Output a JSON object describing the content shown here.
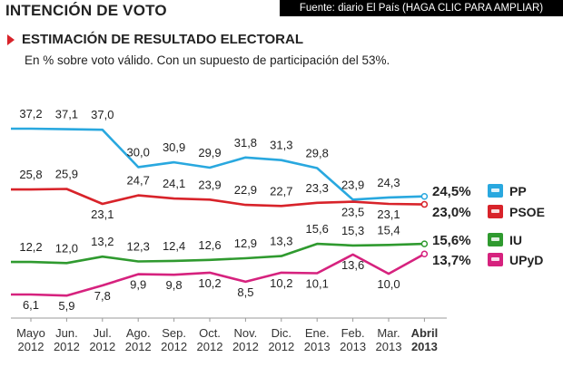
{
  "header": {
    "title": "INTENCIÓN DE VOTO",
    "source": "Fuente: diario El País  (HAGA CLIC PARA AMPLIAR)",
    "subtitle": "ESTIMACIÓN DE RESULTADO ELECTORAL",
    "note": "En % sobre voto válido. Con un supuesto de participación del 53%."
  },
  "chart_data": {
    "type": "line",
    "categories": [
      {
        "month": "Mayo",
        "year": "2012"
      },
      {
        "month": "Jun.",
        "year": "2012"
      },
      {
        "month": "Jul.",
        "year": "2012"
      },
      {
        "month": "Ago.",
        "year": "2012"
      },
      {
        "month": "Sep.",
        "year": "2012"
      },
      {
        "month": "Oct.",
        "year": "2012"
      },
      {
        "month": "Nov.",
        "year": "2012"
      },
      {
        "month": "Dic.",
        "year": "2012"
      },
      {
        "month": "Ene.",
        "year": "2013"
      },
      {
        "month": "Feb.",
        "year": "2013"
      },
      {
        "month": "Mar.",
        "year": "2013"
      },
      {
        "month": "Abril",
        "year": "2013"
      }
    ],
    "series": [
      {
        "name": "PP",
        "color": "#29a8df",
        "icon": "pp-logo-icon",
        "values": [
          37.2,
          37.1,
          37.0,
          30.0,
          30.9,
          29.9,
          31.8,
          31.3,
          29.8,
          23.9,
          24.3,
          24.5
        ],
        "labels": [
          "37,2",
          "37,1",
          "37,0",
          "30,0",
          "30,9",
          "29,9",
          "31,8",
          "31,3",
          "29,8",
          "23,9",
          "24,3",
          "24,5%"
        ]
      },
      {
        "name": "PSOE",
        "color": "#d8232a",
        "icon": "psoe-logo-icon",
        "values": [
          25.8,
          25.9,
          23.1,
          24.7,
          24.1,
          23.9,
          22.9,
          22.7,
          23.3,
          23.5,
          23.1,
          23.0
        ],
        "labels": [
          "25,8",
          "25,9",
          "23,1",
          "24,7",
          "24,1",
          "23,9",
          "22,9",
          "22,7",
          "23,3",
          "23,5",
          "23,1",
          "23,0%"
        ]
      },
      {
        "name": "IU",
        "color": "#2f9a2f",
        "icon": "iu-logo-icon",
        "values": [
          12.2,
          12.0,
          13.2,
          12.3,
          12.4,
          12.6,
          12.9,
          13.3,
          15.6,
          15.3,
          15.4,
          15.6
        ],
        "labels": [
          "12,2",
          "12,0",
          "13,2",
          "12,3",
          "12,4",
          "12,6",
          "12,9",
          "13,3",
          "15,6",
          "15,3",
          "15,4",
          "15,6%"
        ]
      },
      {
        "name": "UPyD",
        "color": "#d6227e",
        "icon": "upyd-logo-icon",
        "values": [
          6.1,
          5.9,
          7.8,
          9.9,
          9.8,
          10.2,
          8.5,
          10.2,
          10.1,
          13.6,
          10.0,
          13.7
        ],
        "labels": [
          "6,1",
          "5,9",
          "7,8",
          "9,9",
          "9,8",
          "10,2",
          "8,5",
          "10,2",
          "10,1",
          "13,6",
          "10,0",
          "13,7%"
        ]
      }
    ],
    "ylim": [
      2,
      40
    ],
    "grid": false,
    "legend": "right",
    "xlabel": "",
    "ylabel": ""
  }
}
